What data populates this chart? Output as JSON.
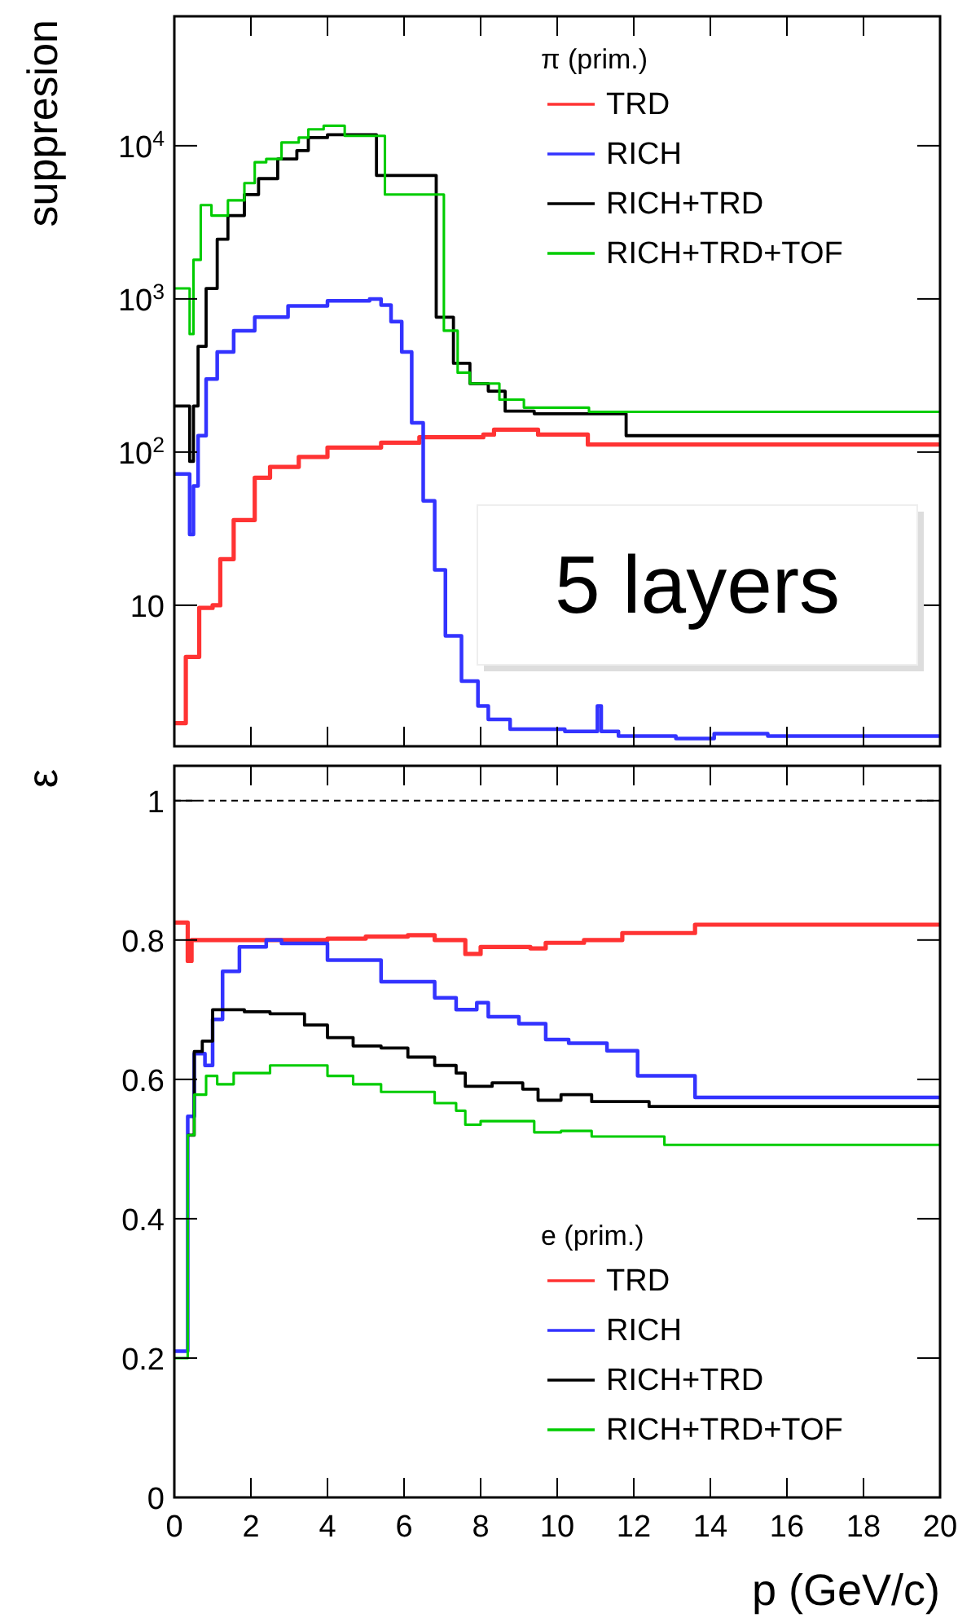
{
  "chart_data": [
    {
      "type": "step",
      "ylabel": "suppresion",
      "legend_title": "π (prim.)",
      "legend": "top right",
      "log": "y",
      "grid": false,
      "tick_labels": "y",
      "xlim": [
        0,
        20
      ],
      "xticks": [
        0,
        2,
        4,
        6,
        8,
        10,
        12,
        14,
        16,
        18,
        20
      ],
      "ylim": [
        1.2,
        70000
      ],
      "yticks": [
        {
          "value": 10,
          "label": "10"
        },
        {
          "value": 100,
          "label": "10$^{2}$"
        },
        {
          "value": 1000,
          "label": "10$^{3}$"
        },
        {
          "value": 10000,
          "label": "10$^{4}$"
        }
      ],
      "annotations": [
        "5 layers"
      ],
      "series": [
        {
          "name": "TRD",
          "color": "#ff3333",
          "x": [
            0,
            0.3,
            0.65,
            1.0,
            1.2,
            1.55,
            2.1,
            2.5,
            3.25,
            4.0,
            5.4,
            6.4,
            8.07,
            8.35,
            9.5,
            10.8,
            20
          ],
          "values": [
            1.7,
            4.6,
            9.6,
            10,
            20,
            36,
            68,
            80,
            93,
            107,
            115,
            125,
            130,
            140,
            130,
            112,
            112
          ]
        },
        {
          "name": "RICH",
          "color": "#3333ff",
          "x": [
            0,
            0.4,
            0.5,
            0.62,
            0.83,
            1.12,
            1.55,
            2.1,
            2.97,
            4.0,
            5.1,
            5.4,
            5.66,
            5.94,
            6.2,
            6.5,
            6.8,
            7.08,
            7.5,
            7.93,
            8.2,
            8.77,
            10.2,
            11.05,
            11.15,
            11.6,
            13.1,
            14.1,
            15.5,
            20
          ],
          "values": [
            72,
            29,
            60,
            128,
            300,
            450,
            620,
            760,
            900,
            970,
            1000,
            910,
            710,
            450,
            155,
            48,
            17,
            6.3,
            3.2,
            2.2,
            1.8,
            1.55,
            1.5,
            2.2,
            1.5,
            1.4,
            1.35,
            1.45,
            1.4,
            1.4
          ]
        },
        {
          "name": "RICH+TRD",
          "color": "#000000",
          "x": [
            0,
            0.4,
            0.5,
            0.62,
            0.83,
            1.12,
            1.4,
            1.83,
            2.2,
            2.7,
            3.2,
            3.5,
            4.0,
            5.28,
            6.84,
            7.29,
            7.72,
            8.2,
            8.64,
            9.4,
            11.8,
            20
          ],
          "values": [
            200,
            87,
            200,
            490,
            1170,
            2450,
            3500,
            4800,
            6100,
            8200,
            9300,
            11300,
            11800,
            6400,
            760,
            380,
            280,
            250,
            185,
            178,
            128,
            128
          ]
        },
        {
          "name": "RICH+TRD+TOF",
          "color": "#00cc00",
          "x": [
            0,
            0.4,
            0.5,
            0.69,
            0.97,
            1.4,
            1.83,
            2.1,
            2.4,
            2.8,
            3.25,
            3.5,
            3.9,
            4.45,
            5.5,
            7.04,
            7.4,
            7.72,
            8.49,
            9.13,
            10.83,
            20
          ],
          "values": [
            1170,
            590,
            1800,
            4100,
            3500,
            4400,
            5700,
            7800,
            8200,
            10500,
            11300,
            12800,
            13500,
            11600,
            4800,
            620,
            330,
            280,
            220,
            195,
            183,
            183
          ]
        }
      ]
    },
    {
      "type": "step",
      "ylabel": "ε",
      "xlabel": "p (GeV/c)",
      "legend_title": "e (prim.)",
      "legend": "bottom right",
      "grid": false,
      "xlim": [
        0,
        20
      ],
      "xticks": [
        0,
        2,
        4,
        6,
        8,
        10,
        12,
        14,
        16,
        18,
        20
      ],
      "ylim": [
        0,
        1.05
      ],
      "yticks": [
        0,
        0.2,
        0.4,
        0.6,
        0.8,
        1
      ],
      "ref_lines": [
        {
          "axis": "y",
          "value": 1,
          "color": "#000000",
          "line_style": "dashed"
        }
      ],
      "series": [
        {
          "name": "TRD",
          "color": "#ff3333",
          "x": [
            0,
            0.35,
            0.45,
            1,
            2,
            3,
            4,
            5,
            6.1,
            6.8,
            7.36,
            7.6,
            8.0,
            9.3,
            9.7,
            10.7,
            11.7,
            13.6,
            20
          ],
          "values": [
            0.825,
            0.77,
            0.8,
            0.8,
            0.8,
            0.8,
            0.802,
            0.805,
            0.807,
            0.8,
            0.8,
            0.78,
            0.79,
            0.788,
            0.796,
            0.8,
            0.81,
            0.822,
            0.822
          ]
        },
        {
          "name": "RICH",
          "color": "#3333ff",
          "x": [
            0,
            0.35,
            0.52,
            0.8,
            1.0,
            1.26,
            1.7,
            2.4,
            2.8,
            4.0,
            5.4,
            6.8,
            7.36,
            7.9,
            8.2,
            9.0,
            9.7,
            10.3,
            11.3,
            12.1,
            13.6,
            20
          ],
          "values": [
            0.21,
            0.547,
            0.637,
            0.62,
            0.686,
            0.755,
            0.79,
            0.8,
            0.795,
            0.771,
            0.74,
            0.717,
            0.7,
            0.71,
            0.69,
            0.68,
            0.657,
            0.652,
            0.641,
            0.605,
            0.574,
            0.574
          ]
        },
        {
          "name": "RICH+TRD",
          "color": "#000000",
          "x": [
            0.35,
            0.52,
            0.73,
            1.0,
            1.83,
            2.5,
            3.4,
            4.0,
            4.67,
            5.4,
            6.1,
            6.8,
            7.36,
            7.6,
            8.3,
            9.1,
            9.5,
            10.1,
            10.9,
            12.4,
            20
          ],
          "values": [
            0.52,
            0.64,
            0.655,
            0.7,
            0.697,
            0.694,
            0.678,
            0.66,
            0.648,
            0.645,
            0.632,
            0.62,
            0.609,
            0.59,
            0.595,
            0.586,
            0.57,
            0.578,
            0.568,
            0.561,
            0.561
          ]
        },
        {
          "name": "RICH+TRD+TOF",
          "color": "#00cc00",
          "x": [
            0,
            0.35,
            0.52,
            0.83,
            1.12,
            1.55,
            2.5,
            4.0,
            4.67,
            5.4,
            6.8,
            7.36,
            7.6,
            8.0,
            9.4,
            10.1,
            10.9,
            12.8,
            20
          ],
          "values": [
            0.2,
            0.52,
            0.578,
            0.605,
            0.593,
            0.609,
            0.62,
            0.605,
            0.593,
            0.582,
            0.566,
            0.555,
            0.535,
            0.54,
            0.524,
            0.526,
            0.518,
            0.506,
            0.506
          ]
        }
      ]
    }
  ]
}
